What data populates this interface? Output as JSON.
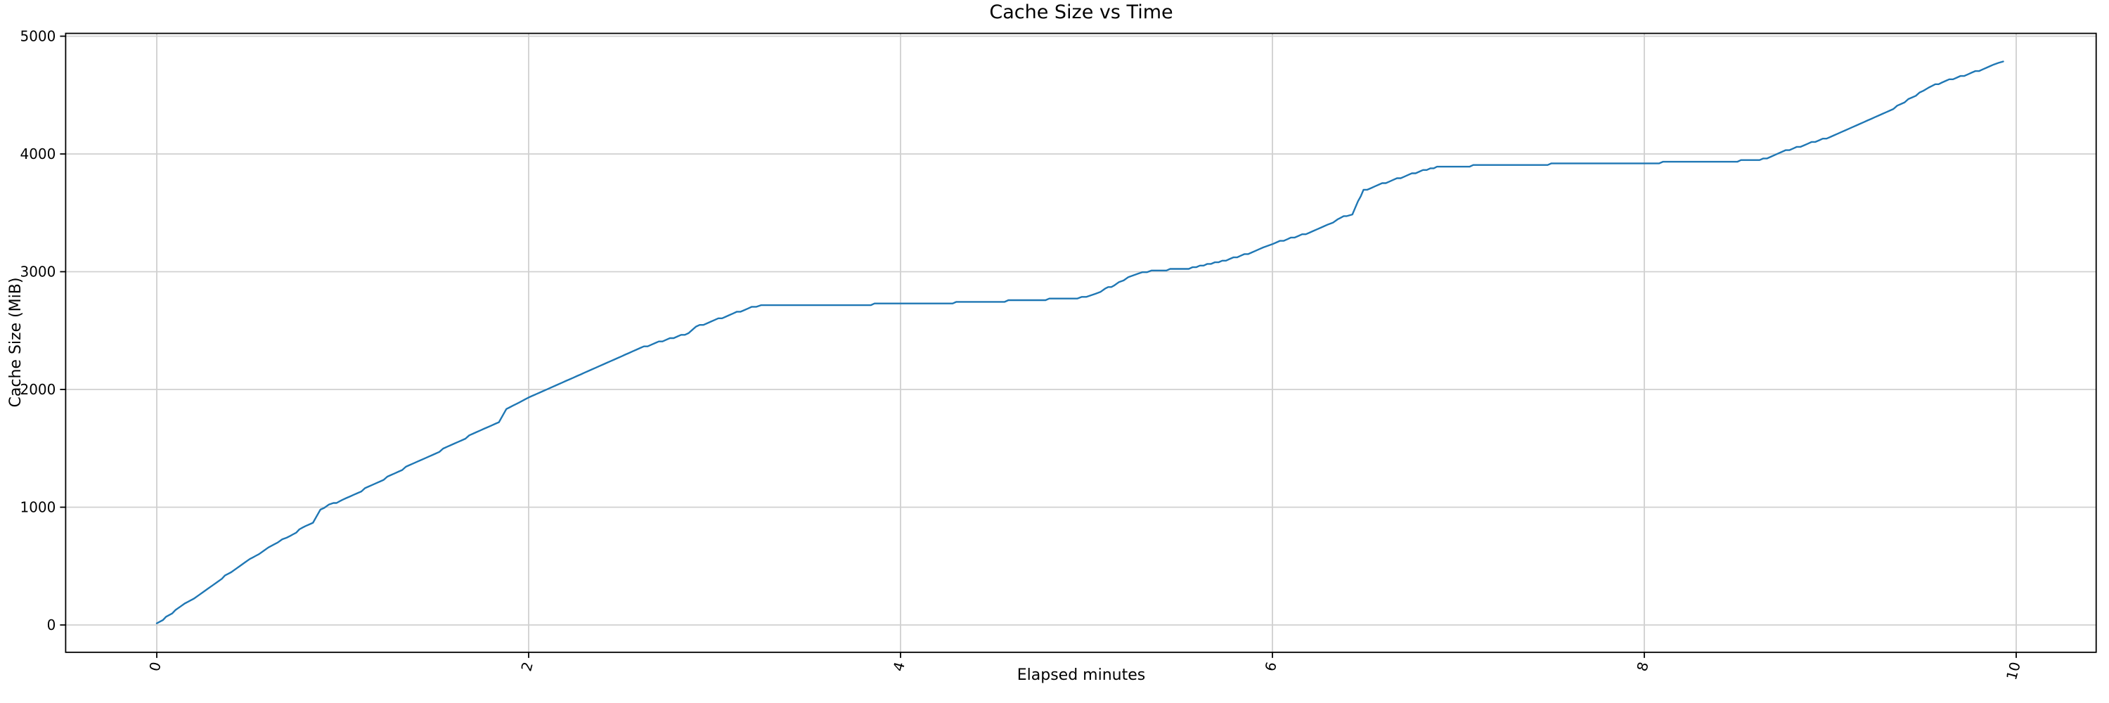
{
  "figure": {
    "background_color": "#ffffff"
  },
  "chart_data": {
    "type": "line",
    "title": "Cache Size vs Time",
    "xlabel": "Elapsed minutes",
    "ylabel": "Cache Size (MiB)",
    "x_ticks": [
      0,
      2,
      4,
      6,
      8,
      10
    ],
    "y_ticks": [
      0,
      1000,
      2000,
      3000,
      4000,
      5000
    ],
    "xlim": [
      -0.49,
      10.43
    ],
    "ylim": [
      -232,
      5024
    ],
    "grid": true,
    "legend": "none",
    "x_tick_rotation_deg": 75,
    "line_color": "#1f77b4",
    "grid_color": "#d0d0d0",
    "spine_color": "#000000",
    "text_color": "#000000",
    "series": [
      {
        "name": "cache-size",
        "points": [
          [
            0.0,
            10
          ],
          [
            0.05,
            65
          ],
          [
            0.1,
            120
          ],
          [
            0.15,
            175
          ],
          [
            0.2,
            230
          ],
          [
            0.25,
            285
          ],
          [
            0.3,
            340
          ],
          [
            0.35,
            395
          ],
          [
            0.4,
            450
          ],
          [
            0.45,
            505
          ],
          [
            0.5,
            555
          ],
          [
            0.55,
            605
          ],
          [
            0.6,
            655
          ],
          [
            0.65,
            700
          ],
          [
            0.7,
            745
          ],
          [
            0.75,
            790
          ],
          [
            0.8,
            840
          ],
          [
            0.84,
            870
          ],
          [
            0.86,
            920
          ],
          [
            0.88,
            980
          ],
          [
            0.9,
            1000
          ],
          [
            0.95,
            1030
          ],
          [
            1.0,
            1065
          ],
          [
            1.1,
            1140
          ],
          [
            1.2,
            1220
          ],
          [
            1.3,
            1305
          ],
          [
            1.4,
            1390
          ],
          [
            1.5,
            1460
          ],
          [
            1.6,
            1540
          ],
          [
            1.7,
            1620
          ],
          [
            1.8,
            1695
          ],
          [
            1.84,
            1725
          ],
          [
            1.86,
            1775
          ],
          [
            1.88,
            1830
          ],
          [
            1.95,
            1895
          ],
          [
            2.0,
            1930
          ],
          [
            2.1,
            2000
          ],
          [
            2.2,
            2065
          ],
          [
            2.3,
            2140
          ],
          [
            2.4,
            2210
          ],
          [
            2.5,
            2280
          ],
          [
            2.6,
            2350
          ],
          [
            2.7,
            2405
          ],
          [
            2.8,
            2450
          ],
          [
            2.86,
            2475
          ],
          [
            2.9,
            2530
          ],
          [
            3.0,
            2585
          ],
          [
            3.1,
            2645
          ],
          [
            3.2,
            2695
          ],
          [
            3.25,
            2712
          ],
          [
            3.4,
            2715
          ],
          [
            3.6,
            2720
          ],
          [
            3.8,
            2722
          ],
          [
            4.0,
            2726
          ],
          [
            4.2,
            2733
          ],
          [
            4.4,
            2742
          ],
          [
            4.6,
            2752
          ],
          [
            4.8,
            2765
          ],
          [
            4.95,
            2778
          ],
          [
            5.0,
            2790
          ],
          [
            5.05,
            2815
          ],
          [
            5.1,
            2850
          ],
          [
            5.15,
            2890
          ],
          [
            5.2,
            2930
          ],
          [
            5.25,
            2965
          ],
          [
            5.3,
            2990
          ],
          [
            5.35,
            3012
          ],
          [
            5.45,
            3018
          ],
          [
            5.55,
            3030
          ],
          [
            5.65,
            3060
          ],
          [
            5.75,
            3100
          ],
          [
            5.85,
            3145
          ],
          [
            5.95,
            3200
          ],
          [
            6.0,
            3235
          ],
          [
            6.1,
            3285
          ],
          [
            6.2,
            3330
          ],
          [
            6.3,
            3395
          ],
          [
            6.35,
            3450
          ],
          [
            6.4,
            3475
          ],
          [
            6.43,
            3490
          ],
          [
            6.46,
            3600
          ],
          [
            6.49,
            3690
          ],
          [
            6.55,
            3725
          ],
          [
            6.65,
            3780
          ],
          [
            6.75,
            3830
          ],
          [
            6.85,
            3875
          ],
          [
            6.92,
            3895
          ],
          [
            7.1,
            3900
          ],
          [
            7.3,
            3907
          ],
          [
            7.5,
            3913
          ],
          [
            7.7,
            3918
          ],
          [
            7.9,
            3922
          ],
          [
            8.1,
            3927
          ],
          [
            8.3,
            3932
          ],
          [
            8.5,
            3940
          ],
          [
            8.62,
            3947
          ],
          [
            8.66,
            3965
          ],
          [
            8.7,
            3995
          ],
          [
            8.8,
            4045
          ],
          [
            8.9,
            4095
          ],
          [
            9.0,
            4145
          ],
          [
            9.1,
            4210
          ],
          [
            9.2,
            4280
          ],
          [
            9.3,
            4350
          ],
          [
            9.4,
            4440
          ],
          [
            9.5,
            4540
          ],
          [
            9.53,
            4560
          ],
          [
            9.6,
            4610
          ],
          [
            9.7,
            4655
          ],
          [
            9.8,
            4710
          ],
          [
            9.88,
            4760
          ],
          [
            9.93,
            4785
          ]
        ]
      }
    ]
  }
}
